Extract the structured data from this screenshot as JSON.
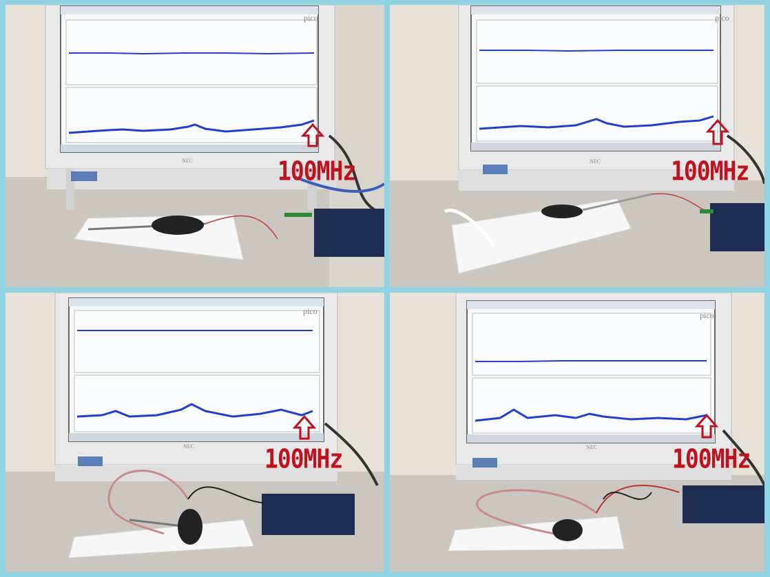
{
  "panels": [
    {
      "id": "top-left",
      "frequency_label": "100MHz",
      "brand": "pico",
      "monitor_brand": "NEC"
    },
    {
      "id": "top-right",
      "frequency_label": "100MHz",
      "brand": "pico",
      "monitor_brand": "NEC"
    },
    {
      "id": "bottom-left",
      "frequency_label": "100MHz",
      "brand": "pico",
      "monitor_brand": "NEC"
    },
    {
      "id": "bottom-right",
      "frequency_label": "100MHz",
      "brand": "pico",
      "monitor_brand": "NEC"
    }
  ],
  "colors": {
    "border": "#8fd3e3",
    "trace": "#1f3fd0",
    "arrow": "#c0121e",
    "wall": "#e8e4dc",
    "desk": "#cfcbc4"
  }
}
